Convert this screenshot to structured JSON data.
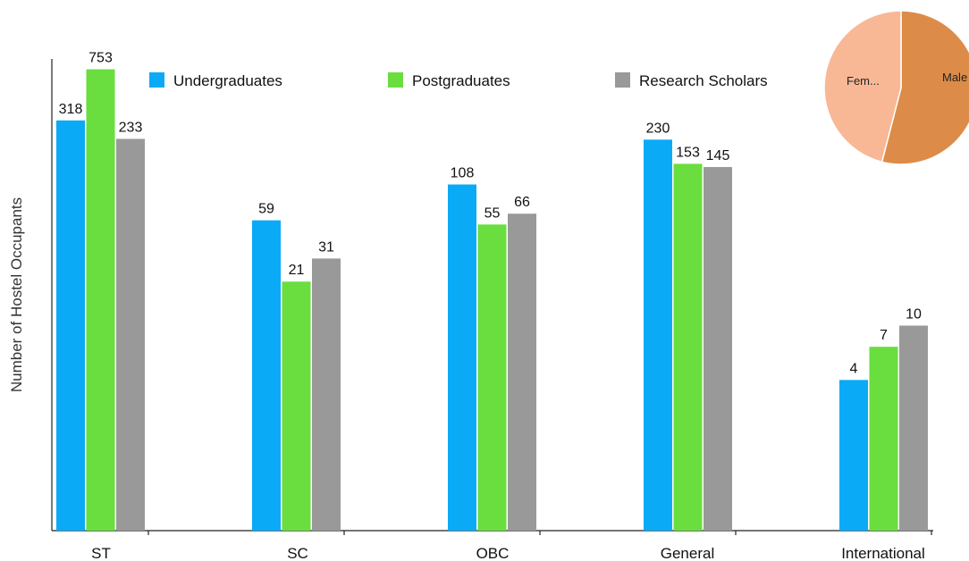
{
  "chart_data": [
    {
      "type": "bar",
      "categories": [
        "ST",
        "SC",
        "OBC",
        "General",
        "International"
      ],
      "series": [
        {
          "name": "Undergraduates",
          "values": [
            318,
            59,
            108,
            230,
            4
          ],
          "color": "#0aaaf7"
        },
        {
          "name": "Postgraduates",
          "values": [
            753,
            21,
            55,
            153,
            7
          ],
          "color": "#6ade3f"
        },
        {
          "name": "Research Scholars",
          "values": [
            233,
            31,
            66,
            145,
            10
          ],
          "color": "#999999"
        }
      ],
      "xlabel": "",
      "ylabel": "Number of Hostel Occupants",
      "y_scale": "log",
      "legend_position": "top",
      "grid": false
    },
    {
      "type": "pie",
      "labels": [
        "Fem...",
        "Male"
      ],
      "values": [
        46,
        54
      ],
      "colors": [
        "#f8b896",
        "#dc8c48"
      ],
      "legend": false
    }
  ]
}
